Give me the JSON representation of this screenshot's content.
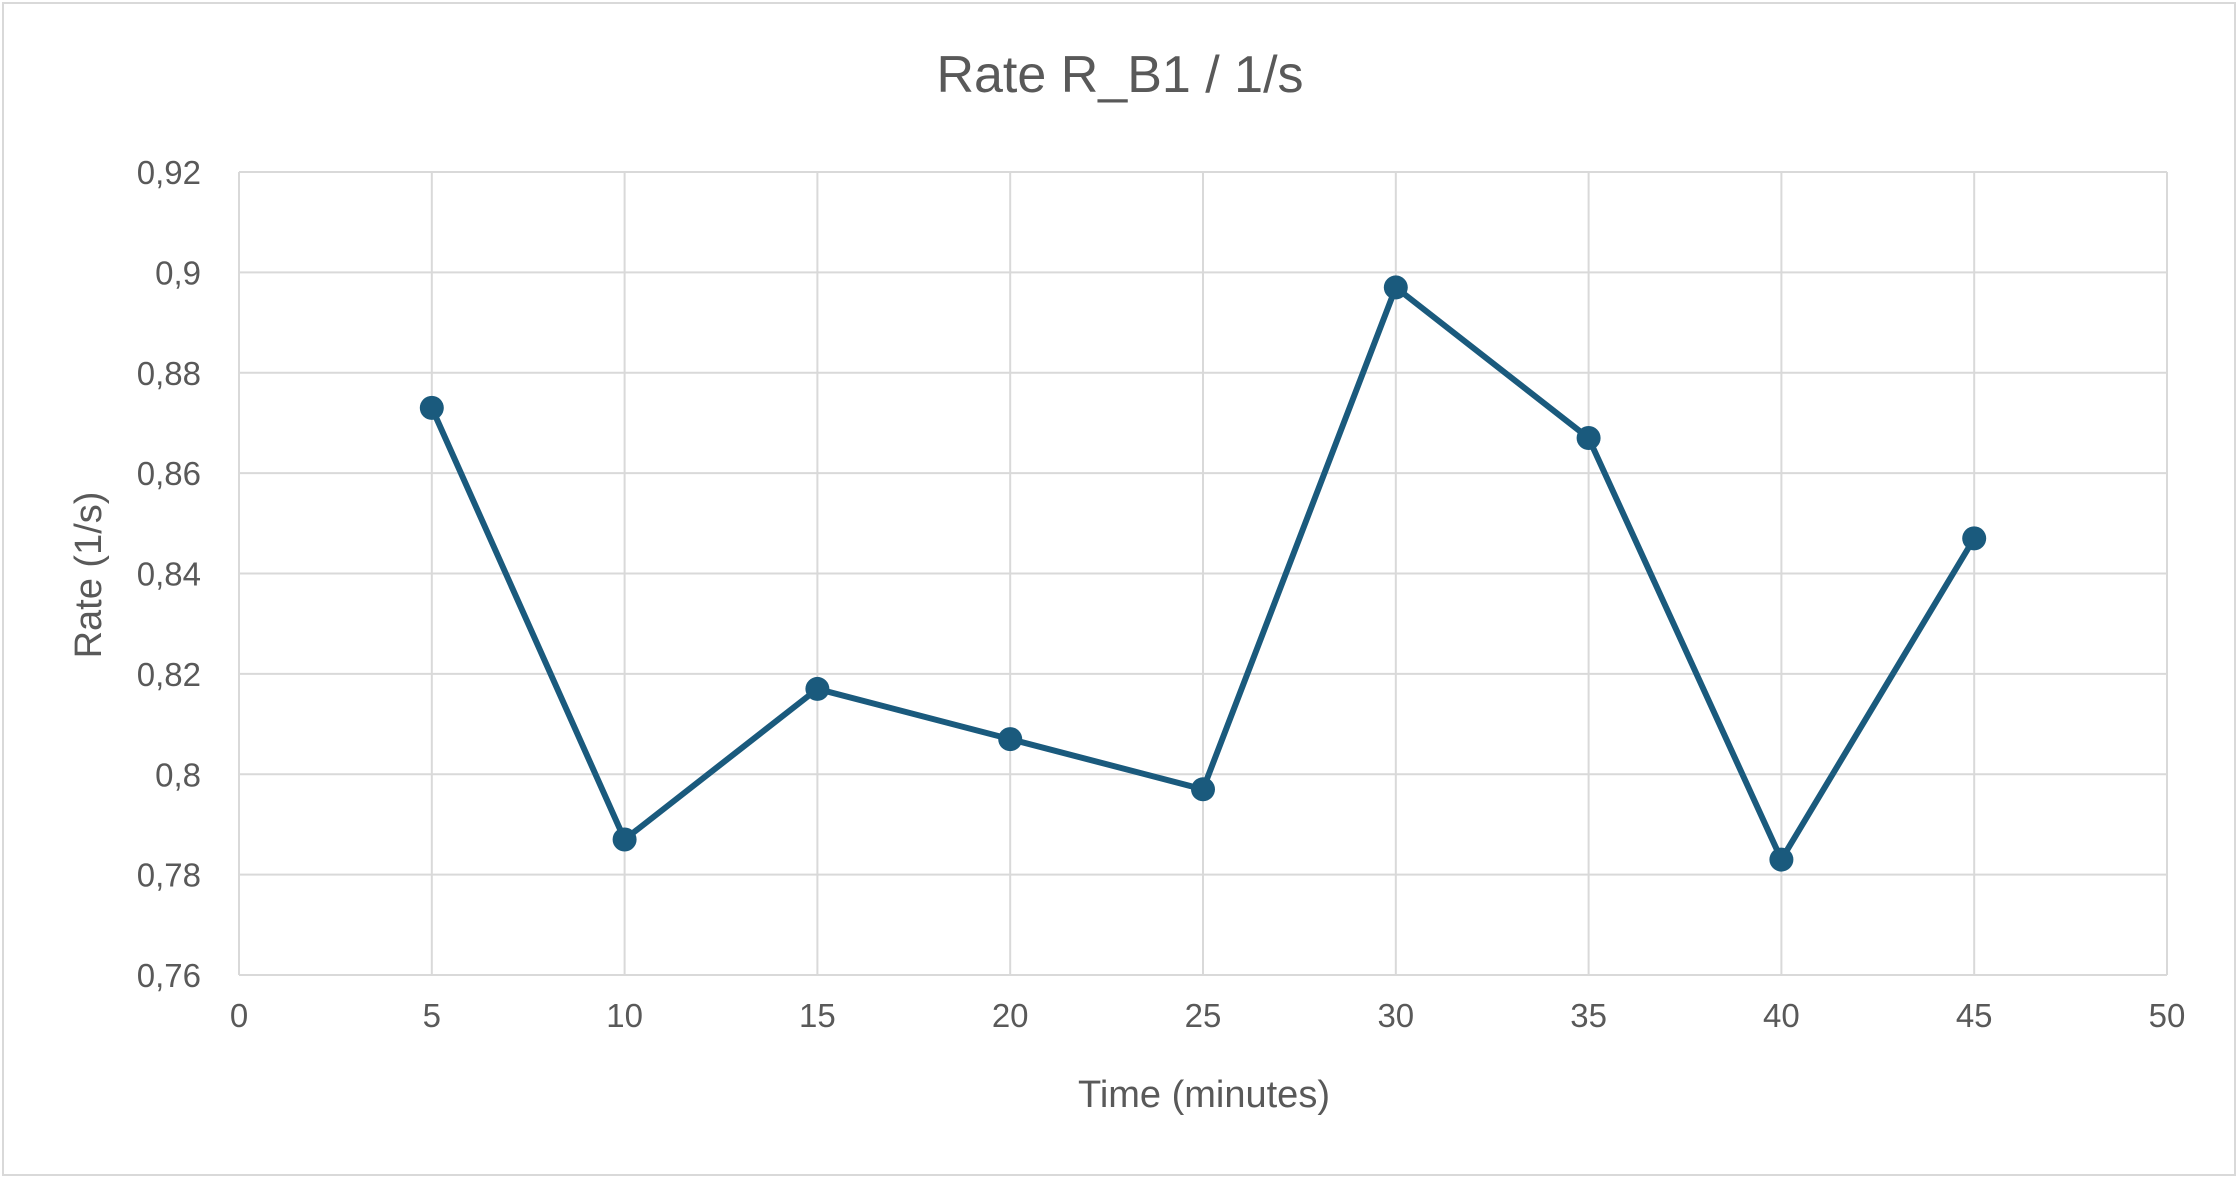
{
  "chart_data": {
    "type": "line",
    "title": "Rate R_B1 / 1/s",
    "xlabel": "Time (minutes)",
    "ylabel": "Rate (1/s)",
    "xlim": [
      0,
      50
    ],
    "ylim": [
      0.76,
      0.92
    ],
    "x_ticks": [
      0,
      5,
      10,
      15,
      20,
      25,
      30,
      35,
      40,
      45,
      50
    ],
    "y_ticks": [
      0.76,
      0.78,
      0.8,
      0.82,
      0.84,
      0.86,
      0.88,
      0.9,
      0.92
    ],
    "y_tick_labels": [
      "0,76",
      "0,78",
      "0,8",
      "0,82",
      "0,84",
      "0,86",
      "0,88",
      "0,9",
      "0,92"
    ],
    "x_tick_labels": [
      "0",
      "5",
      "10",
      "15",
      "20",
      "25",
      "30",
      "35",
      "40",
      "45",
      "50"
    ],
    "grid": true,
    "legend": "none",
    "series": [
      {
        "color": "#1a5a7d",
        "x": [
          5,
          10,
          15,
          20,
          25,
          30,
          35,
          40,
          45
        ],
        "y": [
          0.873,
          0.787,
          0.817,
          0.807,
          0.797,
          0.897,
          0.867,
          0.783,
          0.847
        ]
      }
    ]
  }
}
